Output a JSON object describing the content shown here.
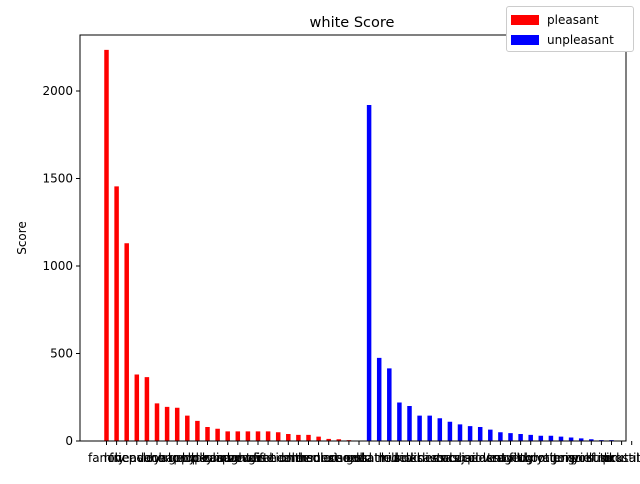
{
  "chart_data": {
    "type": "bar",
    "title": "white Score",
    "xlabel": "",
    "ylabel": "Score",
    "ylim": [
      0,
      2320
    ],
    "yticks": [
      0,
      500,
      1000,
      1500,
      2000
    ],
    "grid": false,
    "legend": {
      "placement": "top-right",
      "entries": [
        "pleasant",
        "unpleasant"
      ]
    },
    "series": [
      {
        "name": "pleasant",
        "color": "#ff0000",
        "categories": [
          "family",
          "love",
          "friend",
          "heaven",
          "peace",
          "loyal",
          "honor",
          "happy",
          "gentle",
          "lucky",
          "diploma",
          "pleasure",
          "rainbow",
          "laughter",
          "paradise",
          "gift",
          "vacation",
          "freedom",
          "health",
          "cheer",
          "miracle",
          "honest",
          "sunrise",
          "diamond",
          "caress",
          "gold"
        ],
        "values": [
          2235,
          1455,
          1130,
          380,
          365,
          215,
          195,
          190,
          145,
          115,
          80,
          70,
          55,
          55,
          55,
          55,
          55,
          50,
          40,
          35,
          35,
          25,
          12,
          10,
          5,
          0
        ]
      },
      {
        "name": "unpleasant",
        "color": "#0000ff",
        "categories": [
          "death",
          "hatred",
          "kill",
          "murder",
          "evil",
          "sickness",
          "disaster",
          "divorce",
          "crash",
          "abuse",
          "jail",
          "accident",
          "poverty",
          "assault",
          "tragedy",
          "filth",
          "ugly",
          "vomit",
          "rotten",
          "agony",
          "prison",
          "grief",
          "pollute",
          "stink",
          "sick",
          "brutal",
          "prostitute"
        ],
        "values": [
          1920,
          475,
          415,
          220,
          200,
          145,
          145,
          130,
          110,
          95,
          85,
          80,
          65,
          50,
          45,
          40,
          35,
          30,
          30,
          25,
          20,
          15,
          10,
          5,
          5,
          2,
          0
        ]
      }
    ]
  }
}
